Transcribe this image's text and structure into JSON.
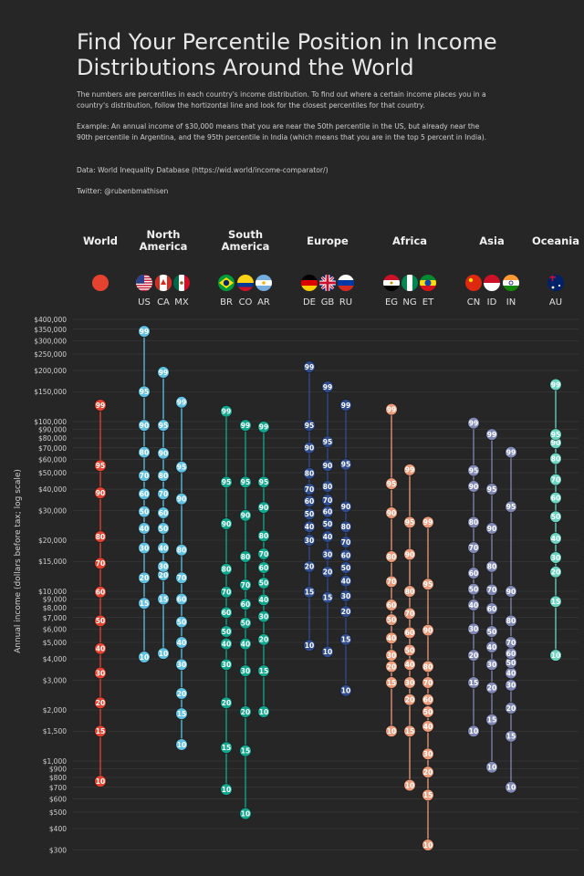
{
  "title": "Find Your Percentile Position in Income Distributions Around the World",
  "description": "The numbers are percentiles in each country's income distribution. To find out where a certain income places you in a country's distribution, follow the hortizontal line and look for the closest percentiles for that country.",
  "example": "Example: An annual income of $30,000 means that you are near the 50th percentile in the US, but already near the 90th percentile in Argentina, and the 95th percentile in India (which means that you are in the top 5 percent in India).",
  "source": "Data: World Inequality Database (https://wid.world/income-comparator/)",
  "credit": "Twitter: @rubenbmathisen",
  "colors": {
    "background": "#262626",
    "World": "#e5432f",
    "North America": "#5ec1e4",
    "South America": "#10a98f",
    "Europe": "#2f4c8e",
    "Africa": "#ec9b7a",
    "Asia": "#7f87b4",
    "Oceania": "#69d6c0"
  },
  "chart_data": {
    "type": "scatter",
    "ylabel": "Annual income (dollars before tax; log scale)",
    "yscale": "log",
    "ylim": [
      300,
      400000
    ],
    "y_ticks": [
      {
        "label": "$300",
        "value": 300
      },
      {
        "label": "$400",
        "value": 400
      },
      {
        "label": "$500",
        "value": 500
      },
      {
        "label": "$600",
        "value": 600
      },
      {
        "label": "$700",
        "value": 700
      },
      {
        "label": "$800",
        "value": 800
      },
      {
        "label": "$900",
        "value": 900
      },
      {
        "label": "$1,000",
        "value": 1000
      },
      {
        "label": "$1,500",
        "value": 1500
      },
      {
        "label": "$2,000",
        "value": 2000
      },
      {
        "label": "$3,000",
        "value": 3000
      },
      {
        "label": "$4,000",
        "value": 4000
      },
      {
        "label": "$5,000",
        "value": 5000
      },
      {
        "label": "$6,000",
        "value": 6000
      },
      {
        "label": "$7,000",
        "value": 7000
      },
      {
        "label": "$8,000",
        "value": 8000
      },
      {
        "label": "$9,000",
        "value": 9000
      },
      {
        "label": "$10,000",
        "value": 10000
      },
      {
        "label": "$15,000",
        "value": 15000
      },
      {
        "label": "$20,000",
        "value": 20000
      },
      {
        "label": "$30,000",
        "value": 30000
      },
      {
        "label": "$40,000",
        "value": 40000
      },
      {
        "label": "$50,000",
        "value": 50000
      },
      {
        "label": "$60,000",
        "value": 60000
      },
      {
        "label": "$70,000",
        "value": 70000
      },
      {
        "label": "$80,000",
        "value": 80000
      },
      {
        "label": "$90,000",
        "value": 90000
      },
      {
        "label": "$100,000",
        "value": 100000
      },
      {
        "label": "$150,000",
        "value": 150000
      },
      {
        "label": "$200,000",
        "value": 200000
      },
      {
        "label": "$250,000",
        "value": 250000
      },
      {
        "label": "$300,000",
        "value": 300000
      },
      {
        "label": "$350,000",
        "value": 350000
      },
      {
        "label": "$400,000",
        "value": 400000
      }
    ],
    "grid": true,
    "regions": [
      {
        "name": "World",
        "label_lines": [
          "World"
        ],
        "countries": [
          "World"
        ]
      },
      {
        "name": "North America",
        "label_lines": [
          "North",
          "America"
        ],
        "countries": [
          "US",
          "CA",
          "MX"
        ]
      },
      {
        "name": "South America",
        "label_lines": [
          "South",
          "America"
        ],
        "countries": [
          "BR",
          "CO",
          "AR"
        ]
      },
      {
        "name": "Europe",
        "label_lines": [
          "Europe"
        ],
        "countries": [
          "DE",
          "GB",
          "RU"
        ]
      },
      {
        "name": "Africa",
        "label_lines": [
          "Africa"
        ],
        "countries": [
          "EG",
          "NG",
          "ET"
        ]
      },
      {
        "name": "Asia",
        "label_lines": [
          "Asia"
        ],
        "countries": [
          "CN",
          "ID",
          "IN"
        ]
      },
      {
        "name": "Oceania",
        "label_lines": [
          "Oceania"
        ],
        "countries": [
          "AU"
        ]
      }
    ],
    "series": [
      {
        "code": "World",
        "name": "",
        "region": "World",
        "flag": "world",
        "points": [
          [
            10,
            760
          ],
          [
            15,
            1500
          ],
          [
            20,
            2200
          ],
          [
            30,
            3300
          ],
          [
            40,
            4600
          ],
          [
            50,
            6700
          ],
          [
            60,
            9900
          ],
          [
            70,
            14600
          ],
          [
            80,
            21000
          ],
          [
            90,
            38000
          ],
          [
            95,
            55000
          ],
          [
            99,
            125000
          ]
        ]
      },
      {
        "code": "US",
        "name": "US",
        "region": "North America",
        "flag": "us",
        "points": [
          [
            10,
            4100
          ],
          [
            15,
            8500
          ],
          [
            20,
            12000
          ],
          [
            30,
            18000
          ],
          [
            40,
            23500
          ],
          [
            50,
            29500
          ],
          [
            60,
            37500
          ],
          [
            70,
            48000
          ],
          [
            80,
            66000
          ],
          [
            90,
            95000
          ],
          [
            95,
            150000
          ],
          [
            99,
            340000
          ]
        ]
      },
      {
        "code": "CA",
        "name": "CA",
        "region": "North America",
        "flag": "ca",
        "points": [
          [
            10,
            4300
          ],
          [
            15,
            9000
          ],
          [
            20,
            12500
          ],
          [
            30,
            14000
          ],
          [
            40,
            18000
          ],
          [
            50,
            23500
          ],
          [
            60,
            29000
          ],
          [
            70,
            37500
          ],
          [
            80,
            48000
          ],
          [
            90,
            65000
          ],
          [
            95,
            95000
          ],
          [
            99,
            195000
          ]
        ]
      },
      {
        "code": "MX",
        "name": "MX",
        "region": "North America",
        "flag": "mx",
        "points": [
          [
            10,
            1250
          ],
          [
            15,
            1900
          ],
          [
            20,
            2500
          ],
          [
            30,
            3700
          ],
          [
            40,
            5000
          ],
          [
            50,
            6600
          ],
          [
            60,
            9000
          ],
          [
            70,
            12000
          ],
          [
            80,
            17500
          ],
          [
            90,
            35000
          ],
          [
            95,
            54000
          ],
          [
            99,
            130000
          ]
        ]
      },
      {
        "code": "BR",
        "name": "BR",
        "region": "South America",
        "flag": "br",
        "points": [
          [
            10,
            680
          ],
          [
            15,
            1200
          ],
          [
            20,
            2200
          ],
          [
            30,
            3700
          ],
          [
            40,
            4900
          ],
          [
            50,
            5800
          ],
          [
            60,
            7500
          ],
          [
            70,
            9900
          ],
          [
            80,
            13500
          ],
          [
            90,
            25000
          ],
          [
            95,
            44000
          ],
          [
            99,
            115000
          ]
        ]
      },
      {
        "code": "CO",
        "name": "CO",
        "region": "South America",
        "flag": "co",
        "points": [
          [
            10,
            490
          ],
          [
            15,
            1150
          ],
          [
            20,
            1950
          ],
          [
            30,
            3400
          ],
          [
            40,
            4900
          ],
          [
            50,
            6500
          ],
          [
            60,
            8400
          ],
          [
            70,
            10900
          ],
          [
            80,
            16000
          ],
          [
            90,
            28000
          ],
          [
            95,
            44000
          ],
          [
            99,
            95000
          ]
        ]
      },
      {
        "code": "AR",
        "name": "AR",
        "region": "South America",
        "flag": "ar",
        "points": [
          [
            10,
            1950
          ],
          [
            15,
            3400
          ],
          [
            20,
            5200
          ],
          [
            30,
            7100
          ],
          [
            40,
            8900
          ],
          [
            50,
            11200
          ],
          [
            60,
            13800
          ],
          [
            70,
            16600
          ],
          [
            80,
            21200
          ],
          [
            90,
            31200
          ],
          [
            95,
            44000
          ],
          [
            99,
            93000
          ]
        ]
      },
      {
        "code": "DE",
        "name": "DE",
        "region": "Europe",
        "flag": "de",
        "points": [
          [
            10,
            4800
          ],
          [
            15,
            9900
          ],
          [
            20,
            14000
          ],
          [
            30,
            20000
          ],
          [
            40,
            24000
          ],
          [
            50,
            28500
          ],
          [
            60,
            34000
          ],
          [
            70,
            40000
          ],
          [
            80,
            49500
          ],
          [
            90,
            70000
          ],
          [
            95,
            95000
          ],
          [
            99,
            210000
          ]
        ]
      },
      {
        "code": "GB",
        "name": "GB",
        "region": "Europe",
        "flag": "gb",
        "points": [
          [
            10,
            4400
          ],
          [
            15,
            9200
          ],
          [
            20,
            13000
          ],
          [
            30,
            16500
          ],
          [
            40,
            21000
          ],
          [
            50,
            25000
          ],
          [
            60,
            29500
          ],
          [
            70,
            34500
          ],
          [
            80,
            41500
          ],
          [
            90,
            55000
          ],
          [
            95,
            76000
          ],
          [
            99,
            160000
          ]
        ]
      },
      {
        "code": "RU",
        "name": "RU",
        "region": "Europe",
        "flag": "ru",
        "points": [
          [
            10,
            2600
          ],
          [
            15,
            5200
          ],
          [
            20,
            7600
          ],
          [
            30,
            9400
          ],
          [
            40,
            11500
          ],
          [
            50,
            13800
          ],
          [
            60,
            16300
          ],
          [
            70,
            19500
          ],
          [
            80,
            24000
          ],
          [
            90,
            31500
          ],
          [
            95,
            56000
          ],
          [
            99,
            125000
          ]
        ]
      },
      {
        "code": "EG",
        "name": "EG",
        "region": "Africa",
        "flag": "eg",
        "points": [
          [
            10,
            1500
          ],
          [
            15,
            2900
          ],
          [
            20,
            3600
          ],
          [
            30,
            4200
          ],
          [
            40,
            5300
          ],
          [
            50,
            6800
          ],
          [
            60,
            8300
          ],
          [
            70,
            11400
          ],
          [
            80,
            16000
          ],
          [
            90,
            29000
          ],
          [
            95,
            43000
          ],
          [
            99,
            118000
          ]
        ]
      },
      {
        "code": "NG",
        "name": "NG",
        "region": "Africa",
        "flag": "ng",
        "points": [
          [
            10,
            720
          ],
          [
            15,
            1500
          ],
          [
            20,
            2300
          ],
          [
            30,
            2900
          ],
          [
            40,
            3700
          ],
          [
            50,
            4500
          ],
          [
            60,
            5700
          ],
          [
            70,
            7400
          ],
          [
            80,
            10000
          ],
          [
            90,
            16500
          ],
          [
            95,
            25500
          ],
          [
            99,
            52000
          ]
        ]
      },
      {
        "code": "ET",
        "name": "ET",
        "region": "Africa",
        "flag": "et",
        "points": [
          [
            10,
            320
          ],
          [
            15,
            630
          ],
          [
            20,
            860
          ],
          [
            30,
            1100
          ],
          [
            40,
            1600
          ],
          [
            50,
            1950
          ],
          [
            60,
            2300
          ],
          [
            70,
            2900
          ],
          [
            80,
            3600
          ],
          [
            90,
            5900
          ],
          [
            95,
            11000
          ],
          [
            99,
            25500
          ]
        ]
      },
      {
        "code": "CN",
        "name": "CN",
        "region": "Asia",
        "flag": "cn",
        "points": [
          [
            10,
            1500
          ],
          [
            15,
            2900
          ],
          [
            20,
            4200
          ],
          [
            30,
            6000
          ],
          [
            40,
            8300
          ],
          [
            50,
            10300
          ],
          [
            60,
            12800
          ],
          [
            70,
            18100
          ],
          [
            80,
            25500
          ],
          [
            90,
            41500
          ],
          [
            95,
            51500
          ],
          [
            99,
            98000
          ]
        ]
      },
      {
        "code": "ID",
        "name": "ID",
        "region": "Asia",
        "flag": "id",
        "points": [
          [
            10,
            920
          ],
          [
            15,
            1750
          ],
          [
            20,
            2700
          ],
          [
            30,
            3700
          ],
          [
            40,
            4700
          ],
          [
            50,
            5800
          ],
          [
            60,
            7900
          ],
          [
            70,
            10200
          ],
          [
            80,
            14000
          ],
          [
            90,
            23500
          ],
          [
            95,
            40000
          ],
          [
            99,
            84000
          ]
        ]
      },
      {
        "code": "IN",
        "name": "IN",
        "region": "Asia",
        "flag": "in",
        "points": [
          [
            10,
            700
          ],
          [
            15,
            1400
          ],
          [
            20,
            2050
          ],
          [
            30,
            2800
          ],
          [
            40,
            3300
          ],
          [
            50,
            3800
          ],
          [
            60,
            4300
          ],
          [
            70,
            5000
          ],
          [
            80,
            6700
          ],
          [
            90,
            10000
          ],
          [
            95,
            31500
          ],
          [
            99,
            66000
          ]
        ]
      },
      {
        "code": "AU",
        "name": "AU",
        "region": "Oceania",
        "flag": "au",
        "points": [
          [
            10,
            4200
          ],
          [
            15,
            8700
          ],
          [
            20,
            13000
          ],
          [
            30,
            15800
          ],
          [
            40,
            20500
          ],
          [
            50,
            27500
          ],
          [
            60,
            35500
          ],
          [
            70,
            45500
          ],
          [
            80,
            60500
          ],
          [
            90,
            75000
          ],
          [
            95,
            84000
          ],
          [
            99,
            165000
          ]
        ]
      }
    ]
  }
}
